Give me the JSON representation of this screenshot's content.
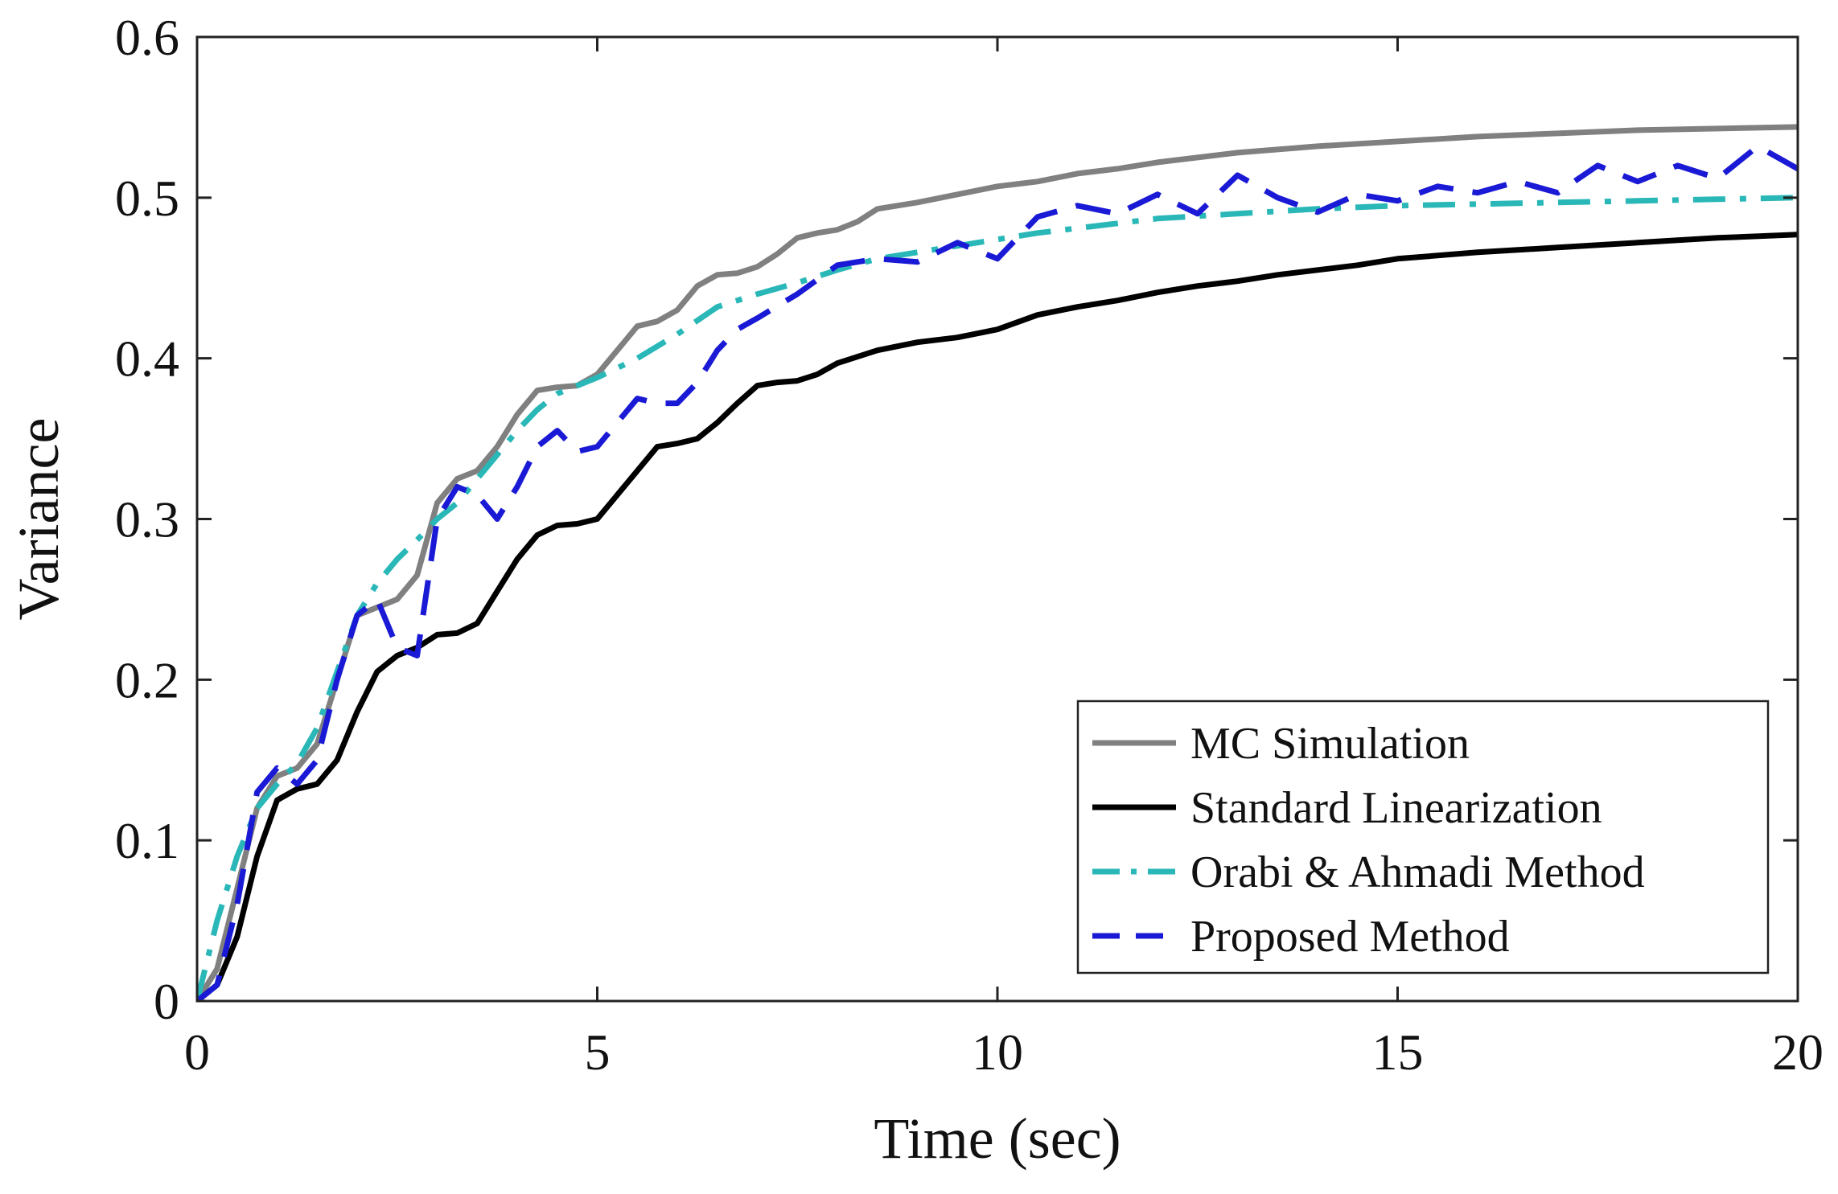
{
  "chart_data": {
    "type": "line",
    "title": "",
    "xlabel": "Time (sec)",
    "ylabel": "Variance",
    "xlim": [
      0,
      20
    ],
    "ylim": [
      0,
      0.6
    ],
    "xticks": [
      0,
      5,
      10,
      15,
      20
    ],
    "xtick_labels": [
      "0",
      "5",
      "10",
      "15",
      "20"
    ],
    "yticks": [
      0,
      0.1,
      0.2,
      0.3,
      0.4,
      0.5,
      0.6
    ],
    "ytick_labels": [
      "0",
      "0.1",
      "0.2",
      "0.3",
      "0.4",
      "0.5",
      "0.6"
    ],
    "grid": false,
    "legend_position": "bottom-right",
    "series": [
      {
        "name": "MC Simulation",
        "color": "#808080",
        "style": "solid",
        "x": [
          0,
          0.25,
          0.5,
          0.75,
          1.0,
          1.25,
          1.5,
          1.75,
          2.0,
          2.25,
          2.5,
          2.75,
          3.0,
          3.25,
          3.5,
          3.75,
          4.0,
          4.25,
          4.5,
          4.75,
          5.0,
          5.25,
          5.5,
          5.75,
          6.0,
          6.25,
          6.5,
          6.75,
          7.0,
          7.25,
          7.5,
          7.75,
          8.0,
          8.25,
          8.5,
          8.75,
          9.0,
          9.5,
          10.0,
          10.5,
          11.0,
          11.5,
          12.0,
          12.5,
          13.0,
          13.5,
          14.0,
          15.0,
          16.0,
          17.0,
          18.0,
          19.0,
          20.0
        ],
        "values": [
          0,
          0.02,
          0.07,
          0.12,
          0.14,
          0.145,
          0.16,
          0.2,
          0.24,
          0.245,
          0.25,
          0.265,
          0.31,
          0.325,
          0.33,
          0.345,
          0.365,
          0.38,
          0.382,
          0.383,
          0.39,
          0.405,
          0.42,
          0.423,
          0.43,
          0.445,
          0.452,
          0.453,
          0.457,
          0.465,
          0.475,
          0.478,
          0.48,
          0.485,
          0.493,
          0.495,
          0.497,
          0.502,
          0.507,
          0.51,
          0.515,
          0.518,
          0.522,
          0.525,
          0.528,
          0.53,
          0.532,
          0.535,
          0.538,
          0.54,
          0.542,
          0.543,
          0.544
        ]
      },
      {
        "name": "Standard Linearization",
        "color": "#000000",
        "style": "solid",
        "x": [
          0,
          0.25,
          0.5,
          0.75,
          1.0,
          1.25,
          1.5,
          1.75,
          2.0,
          2.25,
          2.5,
          2.75,
          3.0,
          3.25,
          3.5,
          3.75,
          4.0,
          4.25,
          4.5,
          4.75,
          5.0,
          5.25,
          5.5,
          5.75,
          6.0,
          6.25,
          6.5,
          6.75,
          7.0,
          7.25,
          7.5,
          7.75,
          8.0,
          8.5,
          9.0,
          9.5,
          10.0,
          10.5,
          11.0,
          11.5,
          12.0,
          12.5,
          13.0,
          13.5,
          14.0,
          14.5,
          15.0,
          16.0,
          17.0,
          18.0,
          19.0,
          20.0
        ],
        "values": [
          0,
          0.01,
          0.04,
          0.09,
          0.125,
          0.132,
          0.135,
          0.15,
          0.18,
          0.205,
          0.215,
          0.22,
          0.228,
          0.229,
          0.235,
          0.255,
          0.275,
          0.29,
          0.296,
          0.297,
          0.3,
          0.315,
          0.33,
          0.345,
          0.347,
          0.35,
          0.36,
          0.372,
          0.383,
          0.385,
          0.386,
          0.39,
          0.397,
          0.405,
          0.41,
          0.413,
          0.418,
          0.427,
          0.432,
          0.436,
          0.441,
          0.445,
          0.448,
          0.452,
          0.455,
          0.458,
          0.462,
          0.466,
          0.469,
          0.472,
          0.475,
          0.477
        ]
      },
      {
        "name": "Orabi & Ahmadi Method",
        "color": "#2ab7b7",
        "style": "dashdot",
        "x": [
          0,
          0.25,
          0.5,
          0.75,
          1.0,
          1.25,
          1.5,
          1.75,
          2.0,
          2.25,
          2.5,
          2.75,
          3.0,
          3.25,
          3.5,
          3.75,
          4.0,
          4.25,
          4.5,
          4.75,
          5.0,
          5.5,
          6.0,
          6.5,
          7.0,
          7.5,
          8.0,
          8.5,
          9.0,
          9.5,
          10.0,
          10.5,
          11.0,
          11.5,
          12.0,
          13.0,
          14.0,
          15.0,
          16.0,
          17.0,
          18.0,
          19.0,
          20.0
        ],
        "values": [
          0,
          0.05,
          0.09,
          0.12,
          0.135,
          0.148,
          0.17,
          0.205,
          0.24,
          0.26,
          0.275,
          0.287,
          0.3,
          0.31,
          0.325,
          0.34,
          0.355,
          0.368,
          0.378,
          0.383,
          0.388,
          0.4,
          0.415,
          0.432,
          0.44,
          0.447,
          0.455,
          0.462,
          0.466,
          0.47,
          0.474,
          0.478,
          0.481,
          0.484,
          0.487,
          0.49,
          0.493,
          0.495,
          0.496,
          0.497,
          0.498,
          0.499,
          0.5
        ]
      },
      {
        "name": "Proposed Method",
        "color": "#1a1ad6",
        "style": "dashed",
        "x": [
          0,
          0.25,
          0.5,
          0.75,
          1.0,
          1.25,
          1.5,
          1.75,
          2.0,
          2.25,
          2.5,
          2.75,
          3.0,
          3.25,
          3.5,
          3.75,
          4.0,
          4.25,
          4.5,
          4.75,
          5.0,
          5.25,
          5.5,
          5.75,
          6.0,
          6.25,
          6.5,
          6.75,
          7.0,
          7.5,
          8.0,
          8.5,
          9.0,
          9.5,
          10.0,
          10.5,
          11.0,
          11.5,
          12.0,
          12.5,
          13.0,
          13.5,
          14.0,
          14.5,
          15.0,
          15.5,
          16.0,
          16.5,
          17.0,
          17.5,
          18.0,
          18.5,
          19.0,
          19.5,
          20.0
        ],
        "values": [
          0,
          0.01,
          0.06,
          0.13,
          0.145,
          0.135,
          0.15,
          0.2,
          0.24,
          0.25,
          0.22,
          0.215,
          0.3,
          0.32,
          0.315,
          0.3,
          0.32,
          0.345,
          0.355,
          0.342,
          0.345,
          0.36,
          0.375,
          0.372,
          0.372,
          0.385,
          0.405,
          0.418,
          0.425,
          0.44,
          0.458,
          0.462,
          0.46,
          0.472,
          0.462,
          0.488,
          0.495,
          0.49,
          0.502,
          0.49,
          0.514,
          0.5,
          0.491,
          0.502,
          0.498,
          0.507,
          0.503,
          0.51,
          0.503,
          0.52,
          0.51,
          0.52,
          0.512,
          0.532,
          0.518
        ]
      }
    ]
  }
}
